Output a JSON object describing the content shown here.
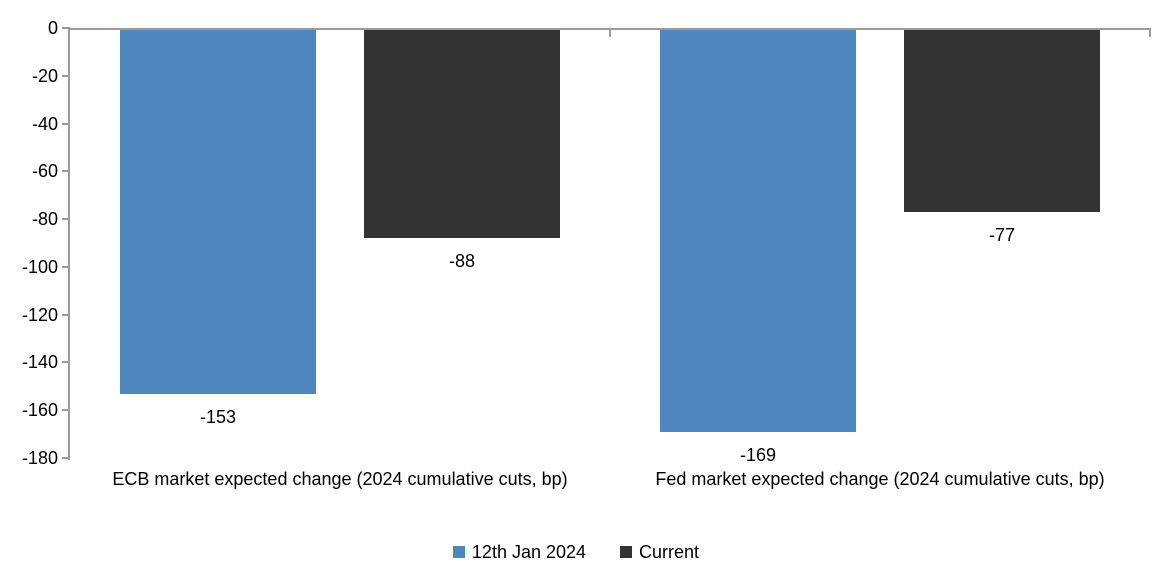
{
  "chart_data": {
    "type": "bar",
    "categories": [
      "ECB market expected change (2024 cumulative cuts, bp)",
      "Fed market expected change (2024 cumulative cuts, bp)"
    ],
    "series": [
      {
        "name": "12th Jan 2024",
        "color": "#4E86BE",
        "values": [
          -153,
          -169
        ]
      },
      {
        "name": "Current",
        "color": "#333333",
        "values": [
          -88,
          -77
        ]
      }
    ],
    "data_labels": [
      [
        "-153",
        "-169"
      ],
      [
        "-88",
        "-77"
      ]
    ],
    "ylim": [
      -180,
      0
    ],
    "ytick_step": 20,
    "yticks": [
      0,
      -20,
      -40,
      -60,
      -80,
      -100,
      -120,
      -140,
      -160,
      -180
    ],
    "grid": false,
    "legend_position": "bottom",
    "axis_color": "#9B9B9B",
    "text_color": "#000000",
    "background_color": "#FFFFFF"
  }
}
